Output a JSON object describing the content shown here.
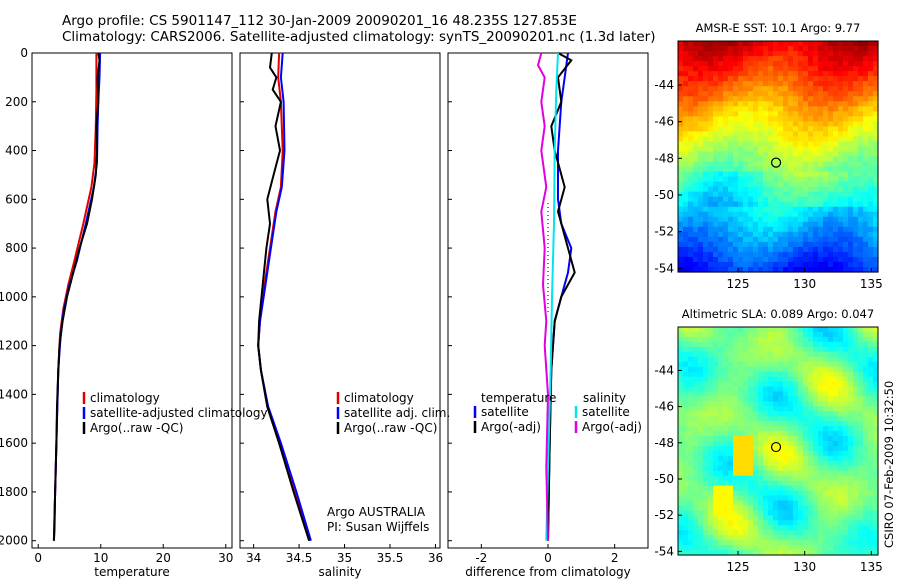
{
  "title": {
    "line1": "Argo profile: CS 5901147_112 30-Jan-2009 20090201_16 48.235S 127.853E",
    "line2": "Climatology: CARS2006. Satellite-adjusted climatology: synTS_20090201.nc (1.3d later)"
  },
  "side_label": "CSIRO 07-Feb-2009 10:32:50",
  "colors": {
    "climatology": "#e00000",
    "satellite": "#0000ff",
    "argo": "#000000",
    "sal_satellite": "#00e5ee",
    "sal_argo": "#e000e0"
  },
  "chart_data": [
    {
      "type": "line",
      "xlabel": "temperature",
      "xlim": [
        -1,
        31
      ],
      "xticks": [
        "0",
        "10",
        "20",
        "30"
      ],
      "xtick_values": [
        0,
        10,
        20,
        30
      ],
      "ylim": [
        2030,
        0
      ],
      "yticks": [
        "0",
        "200",
        "400",
        "600",
        "800",
        "1000",
        "1200",
        "1400",
        "1600",
        "1800",
        "2000"
      ],
      "ytick_values": [
        0,
        200,
        400,
        600,
        800,
        1000,
        1200,
        1400,
        1600,
        1800,
        2000
      ],
      "legend": [
        "climatology",
        "satellite-adjusted climatology",
        "Argo(..raw -QC)"
      ],
      "series": [
        {
          "name": "climatology",
          "color_key": "climatology",
          "points": [
            [
              9.3,
              0
            ],
            [
              9.3,
              150
            ],
            [
              9.2,
              300
            ],
            [
              9.0,
              450
            ],
            [
              8.5,
              550
            ],
            [
              7.2,
              700
            ],
            [
              5.8,
              850
            ],
            [
              4.8,
              950
            ],
            [
              4.0,
              1050
            ],
            [
              3.5,
              1150
            ],
            [
              3.2,
              1300
            ],
            [
              3.0,
              1500
            ],
            [
              2.8,
              1700
            ],
            [
              2.6,
              1900
            ],
            [
              2.5,
              2000
            ]
          ]
        },
        {
          "name": "satellite-adjusted climatology",
          "color_key": "satellite",
          "points": [
            [
              9.9,
              0
            ],
            [
              9.8,
              100
            ],
            [
              9.6,
              200
            ],
            [
              9.5,
              300
            ],
            [
              9.4,
              450
            ],
            [
              8.9,
              550
            ],
            [
              7.6,
              700
            ],
            [
              6.2,
              850
            ],
            [
              5.0,
              950
            ],
            [
              4.1,
              1050
            ],
            [
              3.6,
              1150
            ],
            [
              3.2,
              1300
            ],
            [
              3.0,
              1500
            ],
            [
              2.8,
              1700
            ],
            [
              2.6,
              1900
            ],
            [
              2.5,
              2000
            ]
          ]
        },
        {
          "name": "Argo(..raw -QC)",
          "color_key": "argo",
          "points": [
            [
              9.6,
              0
            ],
            [
              9.8,
              30
            ],
            [
              9.5,
              100
            ],
            [
              9.6,
              200
            ],
            [
              9.3,
              300
            ],
            [
              9.4,
              400
            ],
            [
              9.2,
              500
            ],
            [
              8.6,
              600
            ],
            [
              7.8,
              700
            ],
            [
              6.6,
              800
            ],
            [
              5.6,
              900
            ],
            [
              4.6,
              1000
            ],
            [
              3.9,
              1100
            ],
            [
              3.4,
              1200
            ],
            [
              3.2,
              1300
            ],
            [
              3.0,
              1450
            ],
            [
              2.9,
              1600
            ],
            [
              2.7,
              1800
            ],
            [
              2.6,
              1950
            ],
            [
              2.5,
              2000
            ]
          ]
        }
      ]
    },
    {
      "type": "line",
      "xlabel": "salinity",
      "xlim": [
        33.85,
        36.05
      ],
      "xticks": [
        "34",
        "34.5",
        "35",
        "35.5",
        "36"
      ],
      "xtick_values": [
        34,
        34.5,
        35,
        35.5,
        36
      ],
      "ylim": [
        2030,
        0
      ],
      "legend": [
        "climatology",
        "satellite adj. clim.",
        "Argo(..raw -QC)"
      ],
      "annotations": [
        "Argo AUSTRALIA",
        "PI: Susan Wijffels"
      ],
      "series": [
        {
          "name": "climatology",
          "color_key": "climatology",
          "points": [
            [
              34.28,
              0
            ],
            [
              34.27,
              100
            ],
            [
              34.3,
              200
            ],
            [
              34.32,
              400
            ],
            [
              34.3,
              550
            ],
            [
              34.24,
              650
            ],
            [
              34.18,
              800
            ],
            [
              34.12,
              950
            ],
            [
              34.07,
              1100
            ],
            [
              34.05,
              1200
            ],
            [
              34.08,
              1300
            ],
            [
              34.15,
              1450
            ],
            [
              34.28,
              1600
            ],
            [
              34.45,
              1800
            ],
            [
              34.62,
              2000
            ]
          ]
        },
        {
          "name": "satellite adj. clim.",
          "color_key": "satellite",
          "points": [
            [
              34.32,
              0
            ],
            [
              34.3,
              100
            ],
            [
              34.33,
              200
            ],
            [
              34.34,
              400
            ],
            [
              34.31,
              550
            ],
            [
              34.25,
              650
            ],
            [
              34.19,
              800
            ],
            [
              34.13,
              950
            ],
            [
              34.07,
              1100
            ],
            [
              34.05,
              1200
            ],
            [
              34.08,
              1300
            ],
            [
              34.16,
              1450
            ],
            [
              34.3,
              1600
            ],
            [
              34.47,
              1800
            ],
            [
              34.63,
              2000
            ]
          ]
        },
        {
          "name": "Argo(..raw -QC)",
          "color_key": "argo",
          "points": [
            [
              34.2,
              0
            ],
            [
              34.18,
              60
            ],
            [
              34.25,
              100
            ],
            [
              34.21,
              150
            ],
            [
              34.3,
              200
            ],
            [
              34.24,
              300
            ],
            [
              34.29,
              400
            ],
            [
              34.22,
              500
            ],
            [
              34.15,
              600
            ],
            [
              34.18,
              700
            ],
            [
              34.14,
              800
            ],
            [
              34.1,
              950
            ],
            [
              34.06,
              1100
            ],
            [
              34.05,
              1200
            ],
            [
              34.08,
              1300
            ],
            [
              34.15,
              1450
            ],
            [
              34.28,
              1600
            ],
            [
              34.44,
              1800
            ],
            [
              34.61,
              2000
            ]
          ]
        }
      ]
    },
    {
      "type": "line",
      "xlabel": "difference from climatology",
      "xlim": [
        -3,
        3
      ],
      "xticks": [
        "-2",
        "0",
        "2"
      ],
      "xtick_values": [
        -2,
        0,
        2
      ],
      "ylim": [
        2030,
        0
      ],
      "legend_headers": [
        "temperature",
        "salinity"
      ],
      "legend": [
        "satellite",
        "Argo(-adj)",
        "satellite",
        "Argo(-adj)"
      ],
      "series": [
        {
          "name": "temperature satellite",
          "color_key": "satellite",
          "points": [
            [
              0.6,
              0
            ],
            [
              0.5,
              100
            ],
            [
              0.4,
              200
            ],
            [
              0.3,
              400
            ],
            [
              0.3,
              600
            ],
            [
              0.4,
              700
            ],
            [
              0.7,
              800
            ],
            [
              0.6,
              900
            ],
            [
              0.4,
              1000
            ],
            [
              0.2,
              1100
            ],
            [
              0.1,
              1300
            ],
            [
              0.05,
              1600
            ],
            [
              0.0,
              2000
            ]
          ]
        },
        {
          "name": "temperature Argo(-adj)",
          "color_key": "argo",
          "points": [
            [
              0.3,
              0
            ],
            [
              0.7,
              30
            ],
            [
              0.3,
              100
            ],
            [
              0.4,
              200
            ],
            [
              0.1,
              300
            ],
            [
              0.2,
              400
            ],
            [
              0.5,
              550
            ],
            [
              0.3,
              650
            ],
            [
              0.6,
              800
            ],
            [
              0.8,
              900
            ],
            [
              0.4,
              1000
            ],
            [
              0.2,
              1100
            ],
            [
              0.1,
              1300
            ],
            [
              0.05,
              1600
            ],
            [
              0.0,
              2000
            ]
          ]
        },
        {
          "name": "salinity satellite",
          "color_key": "sal_satellite",
          "points": [
            [
              0.3,
              0
            ],
            [
              0.25,
              150
            ],
            [
              0.2,
              400
            ],
            [
              0.18,
              700
            ],
            [
              0.12,
              1000
            ],
            [
              0.08,
              1300
            ],
            [
              0.0,
              1700
            ],
            [
              -0.05,
              2000
            ]
          ]
        },
        {
          "name": "salinity Argo(-adj)",
          "color_key": "sal_argo",
          "points": [
            [
              -0.2,
              0
            ],
            [
              -0.3,
              50
            ],
            [
              -0.1,
              100
            ],
            [
              -0.2,
              200
            ],
            [
              -0.1,
              300
            ],
            [
              -0.2,
              400
            ],
            [
              -0.05,
              550
            ],
            [
              -0.2,
              650
            ],
            [
              -0.1,
              800
            ],
            [
              -0.15,
              950
            ],
            [
              -0.05,
              1100
            ],
            [
              -0.1,
              1200
            ],
            [
              0.0,
              1400
            ],
            [
              -0.05,
              1700
            ],
            [
              0.0,
              2000
            ]
          ]
        }
      ]
    },
    {
      "type": "heatmap",
      "title": "AMSR-E SST: 10.1 Argo: 9.77",
      "xlim": [
        120.5,
        135.5
      ],
      "ylim": [
        -54.2,
        -41.6
      ],
      "xticks": [
        "125",
        "130",
        "135"
      ],
      "xtick_values": [
        125,
        130,
        135
      ],
      "yticks": [
        "-44",
        "-46",
        "-48",
        "-50",
        "-52",
        "-54"
      ],
      "ytick_values": [
        -44,
        -46,
        -48,
        -50,
        -52,
        -54
      ],
      "marker": {
        "lon": 127.853,
        "lat": -48.235
      }
    },
    {
      "type": "heatmap",
      "title": "Altimetric SLA: 0.089 Argo: 0.047",
      "xlim": [
        120.5,
        135.5
      ],
      "ylim": [
        -54.2,
        -41.6
      ],
      "xticks": [
        "125",
        "130",
        "135"
      ],
      "xtick_values": [
        125,
        130,
        135
      ],
      "yticks": [
        "-44",
        "-46",
        "-48",
        "-50",
        "-52",
        "-54"
      ],
      "ytick_values": [
        -44,
        -46,
        -48,
        -50,
        -52,
        -54
      ],
      "marker": {
        "lon": 127.853,
        "lat": -48.235
      }
    }
  ]
}
